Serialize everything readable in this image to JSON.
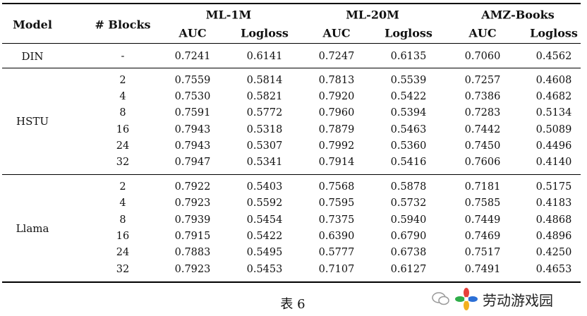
{
  "table": {
    "headers": {
      "model": "Model",
      "blocks": "# Blocks",
      "groups": [
        "ML-1M",
        "ML-20M",
        "AMZ-Books"
      ],
      "metrics": [
        "AUC",
        "Logloss",
        "AUC",
        "Logloss",
        "AUC",
        "Logloss"
      ]
    },
    "rows": [
      {
        "model": "DIN",
        "blocks": "-",
        "values": [
          "0.7241",
          "0.6141",
          "0.7247",
          "0.6135",
          "0.7060",
          "0.4562"
        ]
      },
      {
        "model": "HSTU",
        "blocks": "2",
        "values": [
          "0.7559",
          "0.5814",
          "0.7813",
          "0.5539",
          "0.7257",
          "0.4608"
        ]
      },
      {
        "model": "",
        "blocks": "4",
        "values": [
          "0.7530",
          "0.5821",
          "0.7920",
          "0.5422",
          "0.7386",
          "0.4682"
        ]
      },
      {
        "model": "",
        "blocks": "8",
        "values": [
          "0.7591",
          "0.5772",
          "0.7960",
          "0.5394",
          "0.7283",
          "0.5134"
        ]
      },
      {
        "model": "",
        "blocks": "16",
        "values": [
          "0.7943",
          "0.5318",
          "0.7879",
          "0.5463",
          "0.7442",
          "0.5089"
        ]
      },
      {
        "model": "",
        "blocks": "24",
        "values": [
          "0.7943",
          "0.5307",
          "0.7992",
          "0.5360",
          "0.7450",
          "0.4496"
        ]
      },
      {
        "model": "",
        "blocks": "32",
        "values": [
          "0.7947",
          "0.5341",
          "0.7914",
          "0.5416",
          "0.7606",
          "0.4140"
        ]
      },
      {
        "model": "Llama",
        "blocks": "2",
        "values": [
          "0.7922",
          "0.5403",
          "0.7568",
          "0.5878",
          "0.7181",
          "0.5175"
        ]
      },
      {
        "model": "",
        "blocks": "4",
        "values": [
          "0.7923",
          "0.5592",
          "0.7595",
          "0.5732",
          "0.7585",
          "0.4183"
        ]
      },
      {
        "model": "",
        "blocks": "8",
        "values": [
          "0.7939",
          "0.5454",
          "0.7375",
          "0.5940",
          "0.7449",
          "0.4868"
        ]
      },
      {
        "model": "",
        "blocks": "16",
        "values": [
          "0.7915",
          "0.5422",
          "0.6390",
          "0.6790",
          "0.7469",
          "0.4896"
        ]
      },
      {
        "model": "",
        "blocks": "24",
        "values": [
          "0.7883",
          "0.5495",
          "0.5777",
          "0.6738",
          "0.7517",
          "0.4250"
        ]
      },
      {
        "model": "",
        "blocks": "32",
        "values": [
          "0.7923",
          "0.5453",
          "0.7107",
          "0.6127",
          "0.7491",
          "0.4653"
        ]
      }
    ]
  },
  "caption": "表 6",
  "watermark": {
    "text": "劳动游戏园",
    "icon": "flower-logo-icon",
    "chat_icon": "wechat-icon"
  }
}
